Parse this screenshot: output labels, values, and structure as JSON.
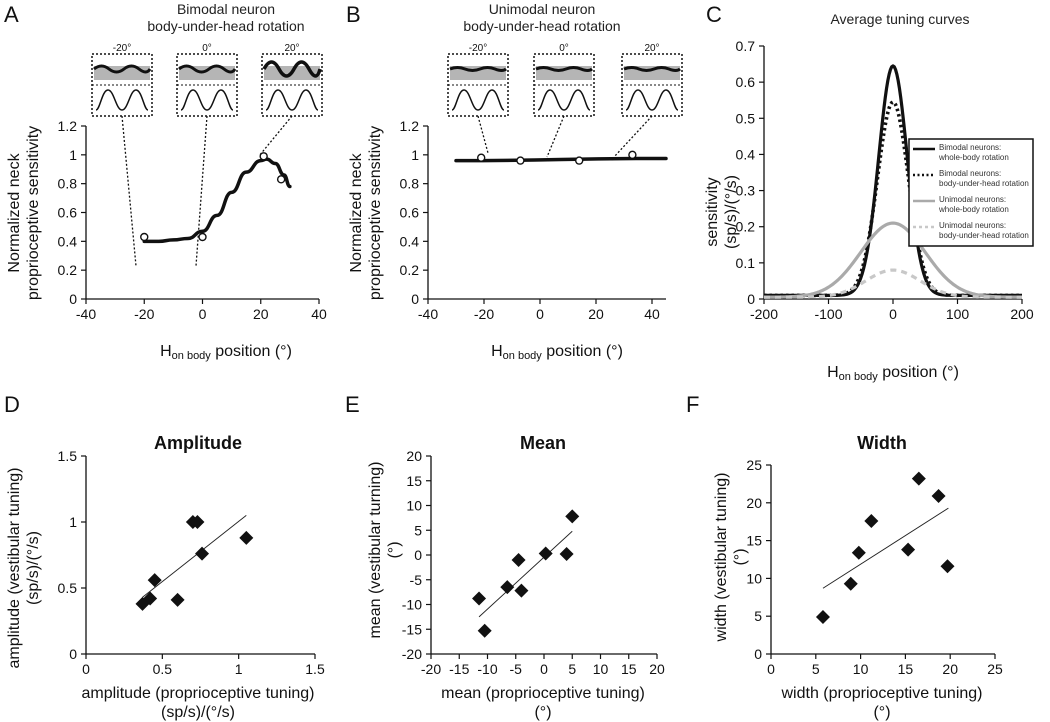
{
  "panels": {
    "A": {
      "label": "A",
      "title_line1": "Bimodal neuron",
      "title_line2": "body-under-head rotation",
      "ylabel_line1": "Normalized neck",
      "ylabel_line2": "proprioceptive sensitivity",
      "xlabel_main": "H",
      "xlabel_sub": "on body",
      "xlabel_rest": " position (°)",
      "insets": [
        "-20°",
        "0°",
        "20°"
      ]
    },
    "B": {
      "label": "B",
      "title_line1": "Unimodal neuron",
      "title_line2": "body-under-head rotation",
      "ylabel_line1": "Normalized neck",
      "ylabel_line2": "proprioceptive sensitivity",
      "xlabel_main": "H",
      "xlabel_sub": "on body",
      "xlabel_rest": " position (°)",
      "insets": [
        "-20°",
        "0°",
        "20°"
      ]
    },
    "C": {
      "label": "C",
      "title": "Average tuning curves",
      "ylabel_line1": "sensitivity",
      "ylabel_line2": "(sp/s)/(°/s)",
      "xlabel_main": "H",
      "xlabel_sub": "on body",
      "xlabel_rest": " position (°)",
      "legend": [
        {
          "line1": "Bimodal neurons:",
          "line2": "whole-body rotation"
        },
        {
          "line1": "Bimodal neurons:",
          "line2": "body-under-head rotation"
        },
        {
          "line1": "Unimodal neurons:",
          "line2": "whole-body rotation"
        },
        {
          "line1": "Unimodal neurons:",
          "line2": "body-under-head rotation"
        }
      ]
    },
    "D": {
      "label": "D",
      "title": "Amplitude",
      "ylabel_line1": "amplitude (vestibular tuning)",
      "ylabel_line2": "(sp/s)/(°/s)",
      "xlabel_line1": "amplitude (proprioceptive tuning)",
      "xlabel_line2": "(sp/s)/(°/s)"
    },
    "E": {
      "label": "E",
      "title": "Mean",
      "ylabel_line1": "mean (vestibular turning)",
      "ylabel_line2": "(°)",
      "xlabel_line1": "mean (proprioceptive tuning)",
      "xlabel_line2": "(°)"
    },
    "F": {
      "label": "F",
      "title": "Width",
      "ylabel_line1": "width (vestibular tuning)",
      "ylabel_line2": "(°)",
      "xlabel_line1": "width (proprioceptive tuning)",
      "xlabel_line2": "(°)"
    }
  },
  "colors": {
    "black": "#111111",
    "gray": "#aaaaaa",
    "light_gray": "#c8c8c8",
    "inset_fill": "#b5b5b5"
  },
  "chart_data": [
    {
      "panel": "A",
      "type": "line",
      "xlim": [
        -40,
        40
      ],
      "ylim": [
        0,
        1.2
      ],
      "xticks": [
        -40,
        -20,
        0,
        20,
        40
      ],
      "yticks": [
        0,
        0.2,
        0.4,
        0.6,
        0.8,
        1,
        1.2
      ],
      "ytick_labels": [
        "0",
        "0.2",
        "0.4",
        "0.6",
        "0.8",
        "1",
        "1.2"
      ],
      "points": [
        {
          "x": -20,
          "y": 0.43
        },
        {
          "x": 0,
          "y": 0.43
        },
        {
          "x": 21,
          "y": 0.99
        },
        {
          "x": 27,
          "y": 0.83
        }
      ],
      "fit": {
        "x": [
          -20,
          -15,
          -10,
          -5,
          0,
          5,
          10,
          15,
          20,
          22,
          25,
          28,
          30
        ],
        "y": [
          0.4,
          0.4,
          0.41,
          0.42,
          0.47,
          0.58,
          0.74,
          0.88,
          0.96,
          0.97,
          0.94,
          0.86,
          0.78
        ]
      }
    },
    {
      "panel": "B",
      "type": "line",
      "xlim": [
        -40,
        45
      ],
      "ylim": [
        0,
        1.2
      ],
      "xticks": [
        -40,
        -20,
        0,
        20,
        40
      ],
      "yticks": [
        0,
        0.2,
        0.4,
        0.6,
        0.8,
        1,
        1.2
      ],
      "ytick_labels": [
        "0",
        "0.2",
        "0.4",
        "0.6",
        "0.8",
        "1",
        "1.2"
      ],
      "points": [
        {
          "x": -21,
          "y": 0.98
        },
        {
          "x": -7,
          "y": 0.96
        },
        {
          "x": 14,
          "y": 0.96
        },
        {
          "x": 33,
          "y": 1.0
        }
      ],
      "fit": {
        "x": [
          -30,
          45
        ],
        "y": [
          0.96,
          0.975
        ]
      }
    },
    {
      "panel": "C",
      "type": "line",
      "xlim": [
        -200,
        200
      ],
      "ylim": [
        0,
        0.7
      ],
      "xticks": [
        -200,
        -100,
        0,
        100,
        200
      ],
      "yticks": [
        0,
        0.1,
        0.2,
        0.3,
        0.4,
        0.5,
        0.6,
        0.7
      ],
      "ytick_labels": [
        "0",
        "0.1",
        "0.2",
        "0.3",
        "0.4",
        "0.5",
        "0.6",
        "0.7"
      ],
      "series": [
        {
          "name": "Bimodal neurons: whole-body rotation",
          "style": "solid-black",
          "gauss": {
            "amp": 0.635,
            "mu": 0,
            "sigma": 22
          },
          "base": 0.01
        },
        {
          "name": "Bimodal neurons: body-under-head rotation",
          "style": "dotted-black",
          "gauss": {
            "amp": 0.535,
            "mu": 0,
            "sigma": 24
          },
          "base": 0.01
        },
        {
          "name": "Unimodal neurons: whole-body rotation",
          "style": "solid-gray",
          "gauss": {
            "amp": 0.205,
            "mu": 0,
            "sigma": 50
          },
          "base": 0.005
        },
        {
          "name": "Unimodal neurons: body-under-head rotation",
          "style": "dashed-gray",
          "gauss": {
            "amp": 0.075,
            "mu": 0,
            "sigma": 42
          },
          "base": 0.005
        }
      ]
    },
    {
      "panel": "D",
      "type": "scatter",
      "xlim": [
        0,
        1.5
      ],
      "ylim": [
        0,
        1.5
      ],
      "xticks": [
        0,
        0.5,
        1,
        1.5
      ],
      "yticks": [
        0,
        0.5,
        1,
        1.5
      ],
      "xtick_labels": [
        "0",
        "0.5",
        "1",
        "1.5"
      ],
      "ytick_labels": [
        "0",
        "0.5",
        "1",
        "1.5"
      ],
      "points": [
        {
          "x": 0.37,
          "y": 0.38
        },
        {
          "x": 0.42,
          "y": 0.42
        },
        {
          "x": 0.45,
          "y": 0.56
        },
        {
          "x": 0.6,
          "y": 0.41
        },
        {
          "x": 0.7,
          "y": 1.0
        },
        {
          "x": 0.73,
          "y": 1.0
        },
        {
          "x": 0.76,
          "y": 0.76
        },
        {
          "x": 1.05,
          "y": 0.88
        }
      ],
      "fit": {
        "x": [
          0.37,
          1.05
        ],
        "y": [
          0.43,
          1.05
        ]
      }
    },
    {
      "panel": "E",
      "type": "scatter",
      "xlim": [
        -20,
        20
      ],
      "ylim": [
        -20,
        20
      ],
      "xticks": [
        -20,
        -15,
        -10,
        -5,
        0,
        5,
        10,
        15,
        20
      ],
      "yticks": [
        -20,
        -15,
        -10,
        -5,
        0,
        5,
        10,
        15,
        20
      ],
      "xtick_labels": [
        "-20",
        "-15",
        "-10",
        "-5",
        "0",
        "5",
        "10",
        "15",
        "20"
      ],
      "ytick_labels": [
        "-20",
        "-15",
        "-10",
        "-5",
        "0",
        "5",
        "10",
        "15",
        "20"
      ],
      "points": [
        {
          "x": -11.5,
          "y": -8.8
        },
        {
          "x": -10.5,
          "y": -15.3
        },
        {
          "x": -6.5,
          "y": -6.5
        },
        {
          "x": -4.5,
          "y": -1.0
        },
        {
          "x": -4.0,
          "y": -7.2
        },
        {
          "x": 0.3,
          "y": 0.3
        },
        {
          "x": 4.0,
          "y": 0.2
        },
        {
          "x": 5.0,
          "y": 7.8
        }
      ],
      "fit": {
        "x": [
          -11.5,
          5.0
        ],
        "y": [
          -12.5,
          4.8
        ]
      }
    },
    {
      "panel": "F",
      "type": "scatter",
      "xlim": [
        0,
        25
      ],
      "ylim": [
        0,
        25
      ],
      "xticks": [
        0,
        5,
        10,
        15,
        20,
        25
      ],
      "yticks": [
        0,
        5,
        10,
        15,
        20,
        25
      ],
      "xtick_labels": [
        "0",
        "5",
        "10",
        "15",
        "20",
        "25"
      ],
      "ytick_labels": [
        "0",
        "5",
        "10",
        "15",
        "20",
        "25"
      ],
      "points": [
        {
          "x": 5.8,
          "y": 4.9
        },
        {
          "x": 8.9,
          "y": 9.3
        },
        {
          "x": 9.8,
          "y": 13.4
        },
        {
          "x": 11.2,
          "y": 17.6
        },
        {
          "x": 15.3,
          "y": 13.8
        },
        {
          "x": 16.5,
          "y": 23.2
        },
        {
          "x": 18.7,
          "y": 20.9
        },
        {
          "x": 19.7,
          "y": 11.6
        }
      ],
      "fit": {
        "x": [
          5.8,
          19.8
        ],
        "y": [
          8.7,
          19.3
        ]
      }
    }
  ]
}
